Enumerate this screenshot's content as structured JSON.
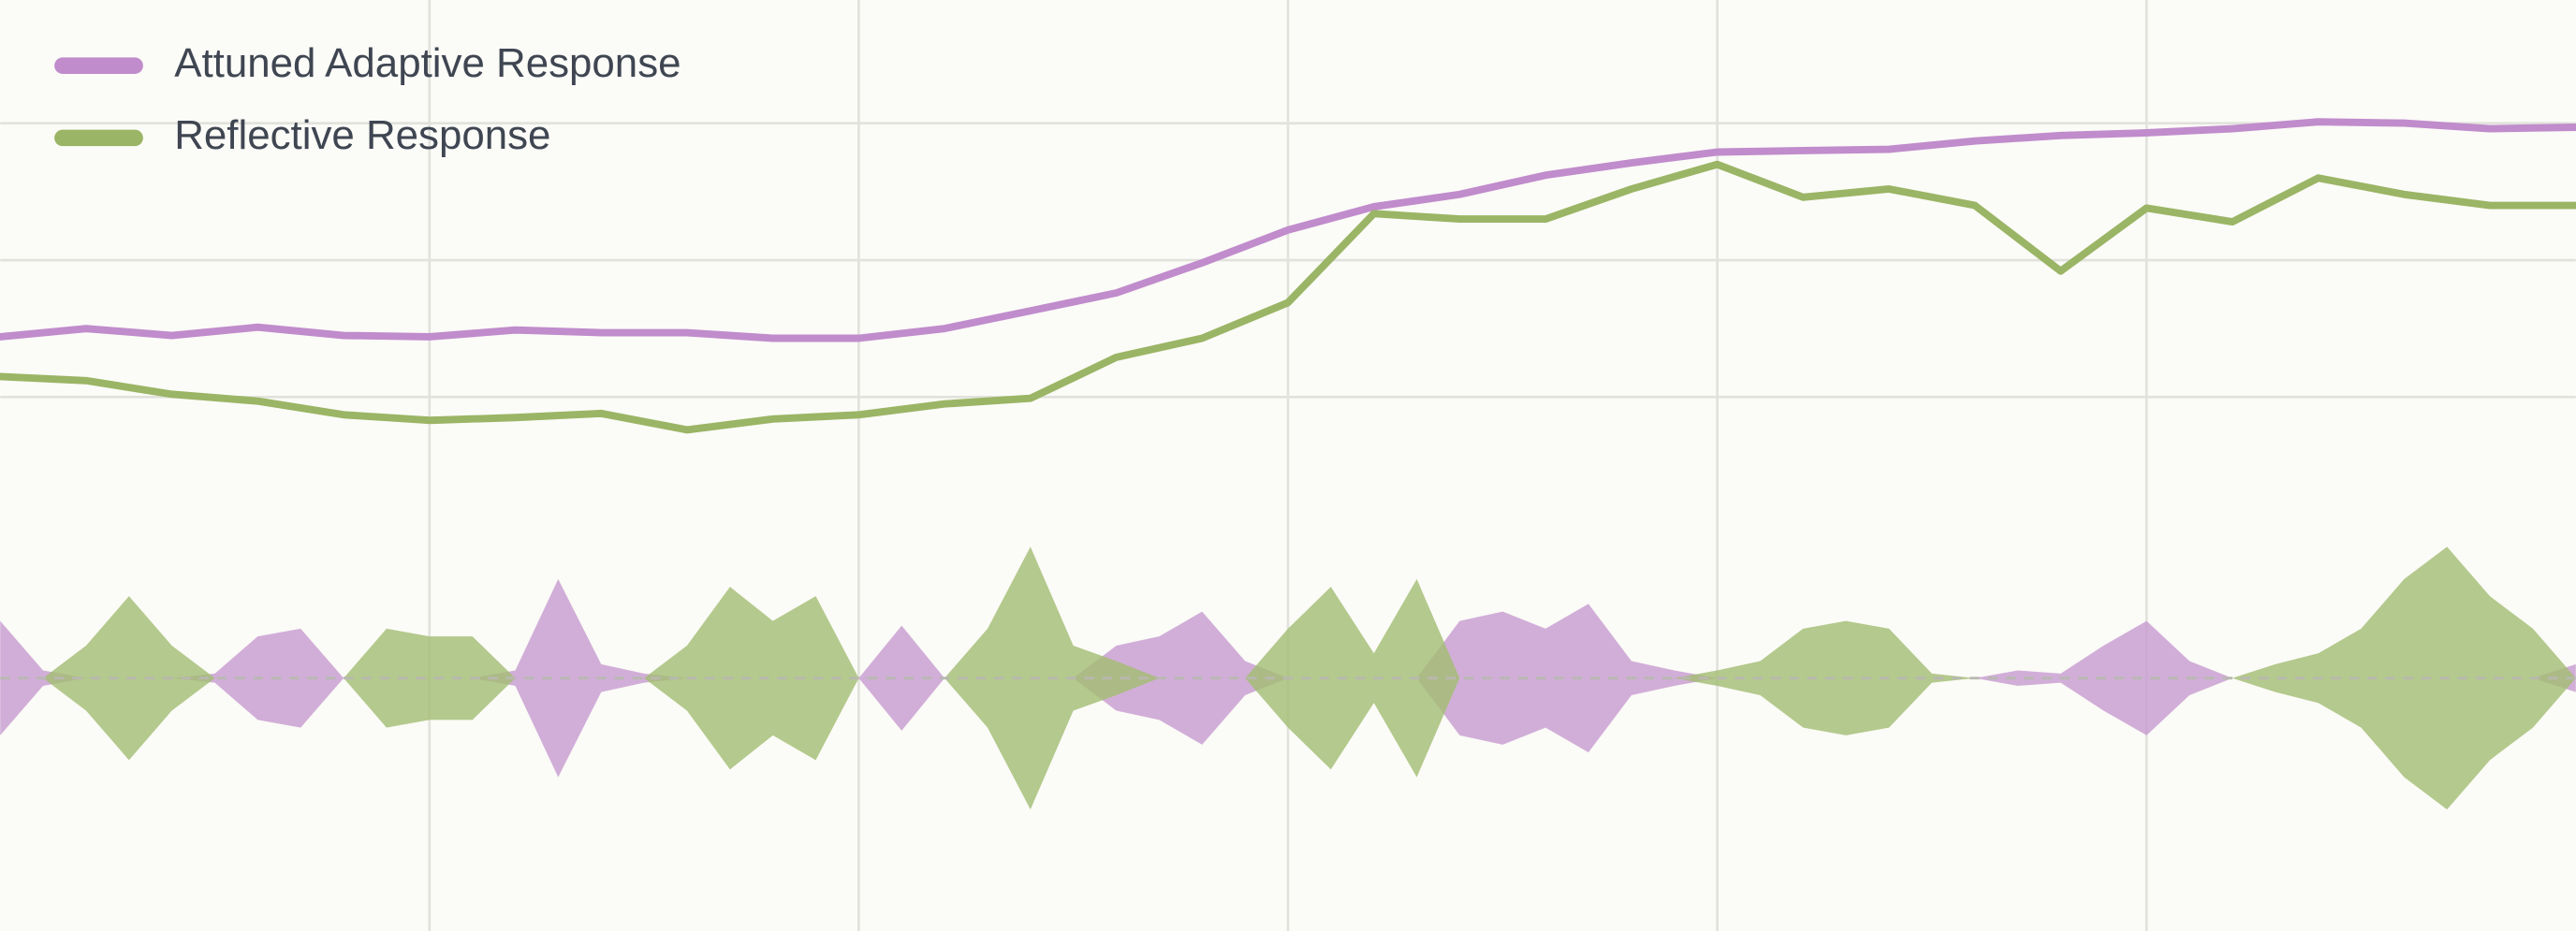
{
  "chart_data": [
    {
      "type": "line",
      "legend": "top-left",
      "grid": true,
      "xlim": [
        0,
        60
      ],
      "xticks": [
        10,
        20,
        30,
        40,
        50
      ],
      "ylim": [
        -39,
        29
      ],
      "yticks": [
        0,
        10,
        20
      ],
      "series": [
        {
          "name": "Attuned Adaptive Response",
          "color": "#c08ccc",
          "x": [
            0,
            2,
            4,
            6,
            8,
            10,
            12,
            14,
            16,
            18,
            20,
            22,
            24,
            26,
            28,
            30,
            32,
            34,
            36,
            38,
            40,
            42,
            44,
            46,
            48,
            50,
            52,
            54,
            56,
            58,
            60
          ],
          "values": [
            4.4,
            5.0,
            4.5,
            5.1,
            4.5,
            4.4,
            4.9,
            4.7,
            4.7,
            4.3,
            4.3,
            5.0,
            6.3,
            7.6,
            9.8,
            12.2,
            13.9,
            14.8,
            16.2,
            17.1,
            17.9,
            18.0,
            18.1,
            18.7,
            19.1,
            19.3,
            19.6,
            20.1,
            20.0,
            19.6,
            19.7
          ]
        },
        {
          "name": "Reflective Response",
          "color": "#9ab565",
          "x": [
            0,
            2,
            4,
            6,
            8,
            10,
            12,
            14,
            16,
            18,
            20,
            22,
            24,
            26,
            28,
            30,
            32,
            34,
            36,
            38,
            40,
            42,
            44,
            46,
            48,
            50,
            52,
            54,
            56,
            58,
            60
          ],
          "values": [
            1.5,
            1.2,
            0.2,
            -0.3,
            -1.3,
            -1.7,
            -1.5,
            -1.2,
            -2.4,
            -1.6,
            -1.3,
            -0.5,
            -0.1,
            2.9,
            4.3,
            6.9,
            13.4,
            13.0,
            13.0,
            15.2,
            17.0,
            14.6,
            15.2,
            14.0,
            9.2,
            13.8,
            12.8,
            16.0,
            14.8,
            14.0,
            14.0
          ]
        }
      ]
    },
    {
      "type": "mirror-area",
      "xlim": [
        0,
        60
      ],
      "ylim": [
        -12,
        12
      ],
      "x": [
        0,
        1,
        2,
        3,
        4,
        5,
        6,
        7,
        8,
        9,
        10,
        11,
        12,
        13,
        14,
        15,
        16,
        17,
        18,
        19,
        20,
        21,
        22,
        23,
        24,
        25,
        26,
        27,
        28,
        29,
        30,
        31,
        32,
        33,
        34,
        35,
        36,
        37,
        38,
        39,
        40,
        41,
        42,
        43,
        44,
        45,
        46,
        47,
        48,
        49,
        50,
        51,
        52,
        53,
        54,
        55,
        56,
        57,
        58,
        59,
        60
      ],
      "series": [
        {
          "color": "#c79bd0",
          "values": [
            3.7,
            0.5,
            0,
            0,
            0,
            0.3,
            2.7,
            3.2,
            0,
            0,
            0,
            0,
            0.5,
            6.4,
            0.9,
            0.3,
            0,
            0,
            0,
            0,
            0,
            3.4,
            0,
            0,
            0,
            0,
            2.1,
            2.7,
            4.3,
            1.1,
            0,
            0,
            0,
            0,
            3.7,
            4.3,
            3.2,
            4.8,
            1.1,
            0.5,
            0,
            0,
            0,
            0,
            0,
            0,
            0,
            0.5,
            0.3,
            2.1,
            3.7,
            1.1,
            0,
            0,
            0,
            0,
            0,
            0,
            0,
            0,
            0.9
          ]
        },
        {
          "color": "#a3bd72",
          "values": [
            0,
            0,
            2.1,
            5.3,
            2.1,
            0,
            0,
            0,
            0,
            3.2,
            2.7,
            2.7,
            0,
            0,
            0,
            0,
            2.1,
            5.9,
            3.7,
            5.3,
            0,
            0,
            0,
            3.2,
            8.5,
            2.1,
            1.1,
            0,
            0,
            0,
            3.2,
            5.9,
            1.6,
            6.4,
            0,
            0,
            0,
            0,
            0,
            0,
            0.5,
            1.1,
            3.2,
            3.7,
            3.2,
            0.3,
            0,
            0,
            0,
            0,
            0,
            0,
            0,
            0.9,
            1.6,
            3.2,
            6.4,
            8.5,
            5.3,
            3.2,
            0
          ]
        }
      ]
    }
  ]
}
